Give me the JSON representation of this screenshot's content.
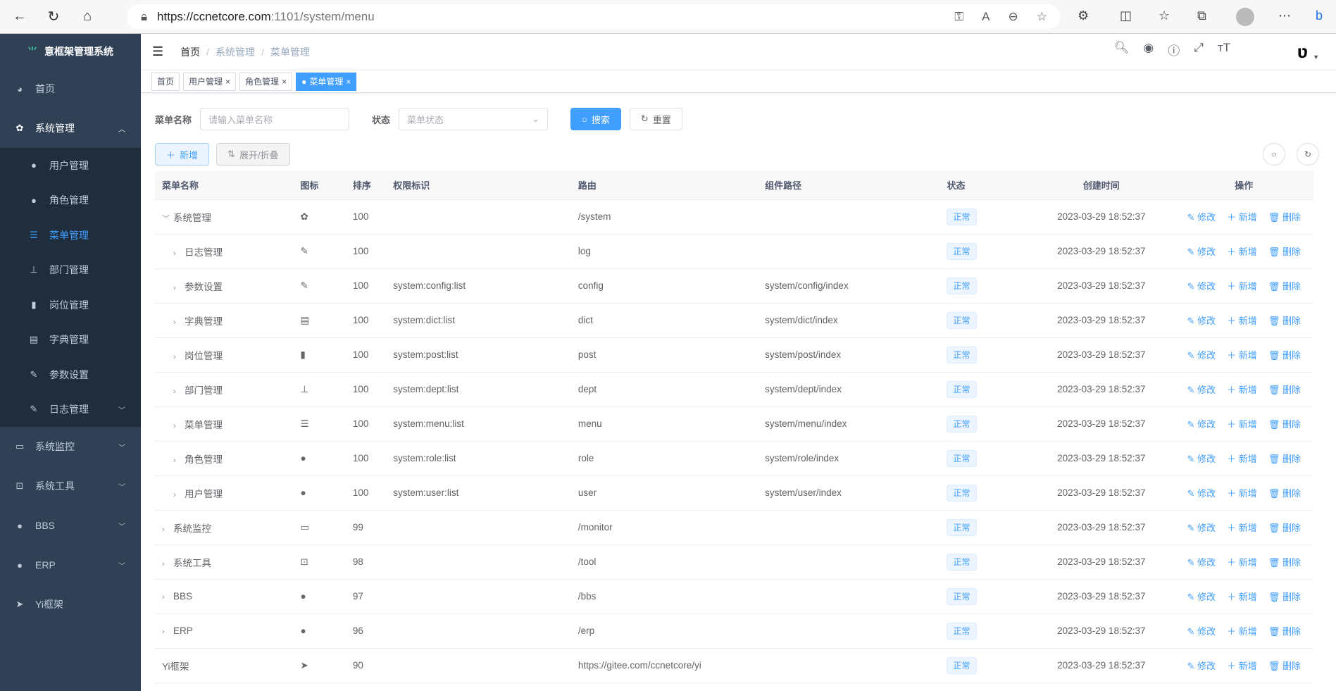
{
  "browser": {
    "url_host": "https://ccnetcore.com",
    "url_rest": ":1101/system/menu"
  },
  "sidebar": {
    "title": "意框架管理系统",
    "items": [
      {
        "label": "首页",
        "icon": "dashboard-icon"
      },
      {
        "label": "系统管理",
        "icon": "gear-icon",
        "expanded": true,
        "children": [
          {
            "label": "用户管理",
            "icon": "user-icon"
          },
          {
            "label": "角色管理",
            "icon": "peoples-icon"
          },
          {
            "label": "菜单管理",
            "icon": "tree-table-icon",
            "active": true
          },
          {
            "label": "部门管理",
            "icon": "tree-icon"
          },
          {
            "label": "岗位管理",
            "icon": "post-icon"
          },
          {
            "label": "字典管理",
            "icon": "dict-icon"
          },
          {
            "label": "参数设置",
            "icon": "edit-icon"
          },
          {
            "label": "日志管理",
            "icon": "log-icon"
          }
        ]
      },
      {
        "label": "系统监控",
        "icon": "monitor-icon"
      },
      {
        "label": "系统工具",
        "icon": "tool-icon"
      },
      {
        "label": "BBS",
        "icon": "globe-icon"
      },
      {
        "label": "ERP",
        "icon": "globe-icon"
      },
      {
        "label": "Yi框架",
        "icon": "paper-plane-icon"
      }
    ]
  },
  "breadcrumb": [
    "首页",
    "系统管理",
    "菜单管理"
  ],
  "tags": [
    {
      "label": "首页"
    },
    {
      "label": "用户管理"
    },
    {
      "label": "角色管理"
    },
    {
      "label": "菜单管理",
      "active": true
    }
  ],
  "search": {
    "name_label": "菜单名称",
    "name_placeholder": "请输入菜单名称",
    "status_label": "状态",
    "status_placeholder": "菜单状态",
    "search_btn": "搜索",
    "reset_btn": "重置"
  },
  "toolbar": {
    "add": "新增",
    "expand": "展开/折叠"
  },
  "colors": {
    "sidebar": "#304156",
    "submenu": "#1f2d3d",
    "accent": "#409eff"
  },
  "table": {
    "headers": [
      "菜单名称",
      "图标",
      "排序",
      "权限标识",
      "路由",
      "组件路径",
      "状态",
      "创建时间",
      "操作"
    ],
    "actions": {
      "edit": "修改",
      "add": "新增",
      "delete": "删除"
    },
    "rows": [
      {
        "name": "系统管理",
        "icon": "gear-icon",
        "sort": "100",
        "perm": "",
        "route": "/system",
        "component": "",
        "status": "正常",
        "created": "2023-03-29 18:52:37",
        "level": 0,
        "expander": "down"
      },
      {
        "name": "日志管理",
        "icon": "log-icon",
        "sort": "100",
        "perm": "",
        "route": "log",
        "component": "",
        "status": "正常",
        "created": "2023-03-29 18:52:37",
        "level": 1,
        "expander": "right"
      },
      {
        "name": "参数设置",
        "icon": "edit-icon",
        "sort": "100",
        "perm": "system:config:list",
        "route": "config",
        "component": "system/config/index",
        "status": "正常",
        "created": "2023-03-29 18:52:37",
        "level": 1,
        "expander": "right"
      },
      {
        "name": "字典管理",
        "icon": "dict-icon",
        "sort": "100",
        "perm": "system:dict:list",
        "route": "dict",
        "component": "system/dict/index",
        "status": "正常",
        "created": "2023-03-29 18:52:37",
        "level": 1,
        "expander": "right"
      },
      {
        "name": "岗位管理",
        "icon": "post-icon",
        "sort": "100",
        "perm": "system:post:list",
        "route": "post",
        "component": "system/post/index",
        "status": "正常",
        "created": "2023-03-29 18:52:37",
        "level": 1,
        "expander": "right"
      },
      {
        "name": "部门管理",
        "icon": "tree-icon",
        "sort": "100",
        "perm": "system:dept:list",
        "route": "dept",
        "component": "system/dept/index",
        "status": "正常",
        "created": "2023-03-29 18:52:37",
        "level": 1,
        "expander": "right"
      },
      {
        "name": "菜单管理",
        "icon": "tree-table-icon",
        "sort": "100",
        "perm": "system:menu:list",
        "route": "menu",
        "component": "system/menu/index",
        "status": "正常",
        "created": "2023-03-29 18:52:37",
        "level": 1,
        "expander": "right"
      },
      {
        "name": "角色管理",
        "icon": "peoples-icon",
        "sort": "100",
        "perm": "system:role:list",
        "route": "role",
        "component": "system/role/index",
        "status": "正常",
        "created": "2023-03-29 18:52:37",
        "level": 1,
        "expander": "right"
      },
      {
        "name": "用户管理",
        "icon": "user-icon",
        "sort": "100",
        "perm": "system:user:list",
        "route": "user",
        "component": "system/user/index",
        "status": "正常",
        "created": "2023-03-29 18:52:37",
        "level": 1,
        "expander": "right"
      },
      {
        "name": "系统监控",
        "icon": "monitor-icon",
        "sort": "99",
        "perm": "",
        "route": "/monitor",
        "component": "",
        "status": "正常",
        "created": "2023-03-29 18:52:37",
        "level": 0,
        "expander": "right"
      },
      {
        "name": "系统工具",
        "icon": "tool-icon",
        "sort": "98",
        "perm": "",
        "route": "/tool",
        "component": "",
        "status": "正常",
        "created": "2023-03-29 18:52:37",
        "level": 0,
        "expander": "right"
      },
      {
        "name": "BBS",
        "icon": "globe-icon",
        "sort": "97",
        "perm": "",
        "route": "/bbs",
        "component": "",
        "status": "正常",
        "created": "2023-03-29 18:52:37",
        "level": 0,
        "expander": "right"
      },
      {
        "name": "ERP",
        "icon": "globe-icon",
        "sort": "96",
        "perm": "",
        "route": "/erp",
        "component": "",
        "status": "正常",
        "created": "2023-03-29 18:52:37",
        "level": 0,
        "expander": "right"
      },
      {
        "name": "Yi框架",
        "icon": "paper-plane-icon",
        "sort": "90",
        "perm": "",
        "route": "https://gitee.com/ccnetcore/yi",
        "component": "",
        "status": "正常",
        "created": "2023-03-29 18:52:37",
        "level": 0,
        "expander": "none"
      }
    ]
  }
}
